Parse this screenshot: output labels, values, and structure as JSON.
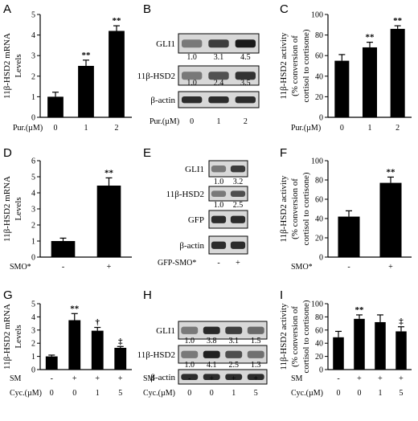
{
  "chart_data": [
    {
      "panel": "A",
      "type": "bar",
      "ylabel": [
        "11β-HSD2 mRNA",
        "Levels"
      ],
      "ylim": [
        0,
        5
      ],
      "yticks": [
        0,
        1,
        2,
        3,
        4,
        5
      ],
      "x_label_prefix": "Pur.(µM)",
      "categories": [
        "0",
        "1",
        "2"
      ],
      "values": [
        1.0,
        2.5,
        4.2
      ],
      "errors": [
        0.22,
        0.28,
        0.25
      ],
      "significance": [
        "",
        "**",
        "**"
      ]
    },
    {
      "panel": "C",
      "type": "bar",
      "ylabel": [
        "11β-HSD2 activity",
        "(% conversion of",
        "cortisol to cortisone)"
      ],
      "ylim": [
        0,
        100
      ],
      "yticks": [
        0,
        20,
        40,
        60,
        80,
        100
      ],
      "x_label_prefix": "Pur.(µM)",
      "categories": [
        "0",
        "1",
        "2"
      ],
      "values": [
        55,
        68,
        86
      ],
      "errors": [
        6,
        5,
        3
      ],
      "significance": [
        "",
        "**",
        "**"
      ]
    },
    {
      "panel": "D",
      "type": "bar",
      "ylabel": [
        "11β-HSD2 mRNA",
        "Levels"
      ],
      "ylim": [
        0,
        6
      ],
      "yticks": [
        0,
        1,
        2,
        3,
        4,
        5,
        6
      ],
      "x_label_prefix": "SMO*",
      "categories": [
        "-",
        "+"
      ],
      "values": [
        1.0,
        4.45
      ],
      "errors": [
        0.18,
        0.48
      ],
      "significance": [
        "",
        "**"
      ]
    },
    {
      "panel": "F",
      "type": "bar",
      "ylabel": [
        "11β-HSD2 activity",
        "(% conversion of",
        "cortisol to cortisone)"
      ],
      "ylim": [
        0,
        100
      ],
      "yticks": [
        0,
        20,
        40,
        60,
        80,
        100
      ],
      "x_label_prefix": "SMO*",
      "categories": [
        "-",
        "+"
      ],
      "values": [
        42,
        77
      ],
      "errors": [
        6,
        6
      ],
      "significance": [
        "",
        "**"
      ]
    },
    {
      "panel": "G",
      "type": "bar",
      "ylabel": [
        "11β-HSD2 mRNA",
        "Levels"
      ],
      "ylim": [
        0,
        5
      ],
      "yticks": [
        0,
        1,
        2,
        3,
        4,
        5
      ],
      "x_label_rows": [
        {
          "prefix": "SM",
          "values": [
            "-",
            "+",
            "+",
            "+"
          ]
        },
        {
          "prefix": "Cyc.(µM)",
          "values": [
            "0",
            "0",
            "1",
            "5"
          ]
        }
      ],
      "values": [
        1.0,
        3.75,
        2.95,
        1.65
      ],
      "errors": [
        0.1,
        0.5,
        0.25,
        0.1
      ],
      "significance": [
        "",
        "**",
        "†",
        "‡"
      ]
    },
    {
      "panel": "I",
      "type": "bar",
      "ylabel": [
        "11β-HSD2 activity",
        "(% conversion of",
        "cortisol to cortisone)"
      ],
      "ylim": [
        0,
        100
      ],
      "yticks": [
        0,
        20,
        40,
        60,
        80,
        100
      ],
      "x_label_rows": [
        {
          "prefix": "SM",
          "values": [
            "-",
            "+",
            "+",
            "+"
          ]
        },
        {
          "prefix": "Cyc.(µM)",
          "values": [
            "0",
            "0",
            "1",
            "5"
          ]
        }
      ],
      "values": [
        49,
        77,
        72,
        58
      ],
      "errors": [
        9,
        6,
        11,
        7
      ],
      "significance": [
        "",
        "**",
        "",
        "‡"
      ]
    }
  ],
  "blots": [
    {
      "panel": "B",
      "rows": [
        {
          "label": "GLI1",
          "quant": [
            "1.0",
            "3.1",
            "4.5"
          ]
        },
        {
          "label": "11β-HSD2",
          "quant": [
            "1.0",
            "2.4",
            "3.5"
          ]
        },
        {
          "label": "β-actin",
          "quant": []
        }
      ],
      "x_label_prefix": "Pur.(µM)",
      "lanes": [
        "0",
        "1",
        "2"
      ]
    },
    {
      "panel": "E",
      "rows": [
        {
          "label": "GLI1",
          "quant": [
            "1.0",
            "3.2"
          ]
        },
        {
          "label": "11β-HSD2",
          "quant": [
            "1.0",
            "2.5"
          ]
        },
        {
          "label": "GFP",
          "quant": []
        },
        {
          "label": "β-actin",
          "quant": []
        }
      ],
      "x_label_prefix": "GFP-SMO*",
      "lanes": [
        "-",
        "+"
      ]
    },
    {
      "panel": "H",
      "rows": [
        {
          "label": "GLI1",
          "quant": [
            "1.0",
            "3.8",
            "3.1",
            "1.5"
          ]
        },
        {
          "label": "11β-HSD2",
          "quant": [
            "1.0",
            "4.1",
            "2.5",
            "1.3"
          ]
        },
        {
          "label": "β-actin",
          "quant": []
        }
      ],
      "x_label_rows": [
        {
          "prefix": "SM",
          "values": [
            "-",
            "+",
            "+",
            "+"
          ]
        },
        {
          "prefix": "Cyc.(µM)",
          "values": [
            "0",
            "0",
            "1",
            "5"
          ]
        }
      ]
    }
  ],
  "colors": {
    "bar": "#000000",
    "axis": "#000000",
    "blot_bg": "#d8d8d8",
    "band": "#1a1a1a"
  }
}
